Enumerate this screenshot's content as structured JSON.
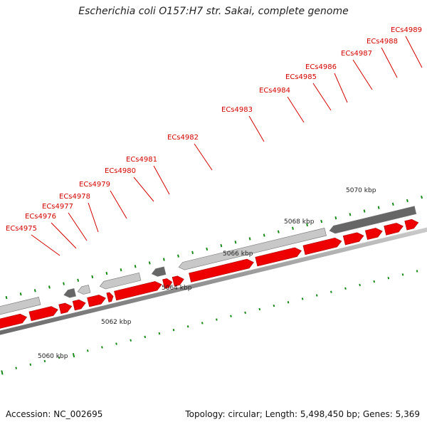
{
  "title": "Escherichia coli O157:H7 str. Sakai, complete genome",
  "accession": "Accession: NC_002695",
  "summary": "Topology: circular; Length: 5,498,450 bp; Genes: 5,369",
  "colors": {
    "forward_cds": "#ee0000",
    "reverse_light": "#c8c8c8",
    "reverse_dark": "#666666",
    "backbone": "#aaaaaa",
    "tick": "#1a8a1a",
    "label": "#d40000"
  },
  "gene_labels": [
    "ECs4975",
    "ECs4976",
    "ECs4977",
    "ECs4978",
    "ECs4979",
    "ECs4980",
    "ECs4981",
    "ECs4982",
    "ECs4983",
    "ECs4984",
    "ECs4985",
    "ECs4986",
    "ECs4987",
    "ECs4988",
    "ECs4989"
  ],
  "kbp_labels": [
    "5060 kbp",
    "5062 kbp",
    "5064 kbp",
    "5066 kbp",
    "5068 kbp",
    "5070 kbp"
  ]
}
